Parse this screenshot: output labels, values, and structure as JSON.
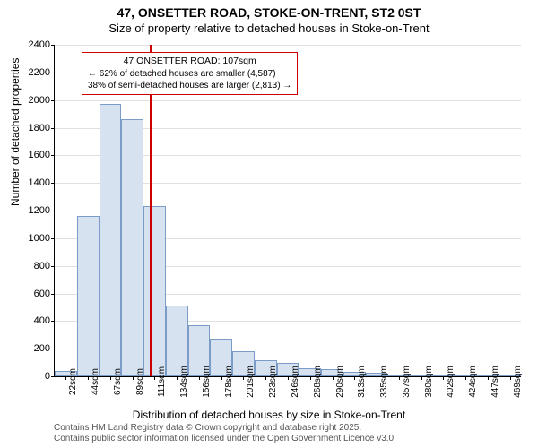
{
  "title": "47, ONSETTER ROAD, STOKE-ON-TRENT, ST2 0ST",
  "subtitle": "Size of property relative to detached houses in Stoke-on-Trent",
  "ylabel": "Number of detached properties",
  "xlabel": "Distribution of detached houses by size in Stoke-on-Trent",
  "footer_line1": "Contains HM Land Registry data © Crown copyright and database right 2025.",
  "footer_line2": "Contains public sector information licensed under the Open Government Licence v3.0.",
  "annotation": {
    "title": "47 ONSETTER ROAD: 107sqm",
    "line1": "← 62% of detached houses are smaller (4,587)",
    "line2": "38% of semi-detached houses are larger (2,813) →"
  },
  "chart": {
    "type": "histogram",
    "ylim": [
      0,
      2400
    ],
    "ytick_step": 200,
    "background_color": "#ffffff",
    "grid_color": "#e0e0e0",
    "bar_fill": "#d6e2f0",
    "bar_border": "#7a9cc6",
    "marker_color": "#cc0000",
    "marker_x": 107,
    "x_start": 11,
    "x_bin_width": 22.5,
    "categories": [
      "22sqm",
      "44sqm",
      "67sqm",
      "89sqm",
      "111sqm",
      "134sqm",
      "156sqm",
      "178sqm",
      "201sqm",
      "223sqm",
      "246sqm",
      "268sqm",
      "290sqm",
      "313sqm",
      "335sqm",
      "357sqm",
      "380sqm",
      "402sqm",
      "424sqm",
      "447sqm",
      "469sqm"
    ],
    "values": [
      40,
      1160,
      1970,
      1860,
      1230,
      510,
      370,
      270,
      180,
      120,
      100,
      60,
      50,
      30,
      25,
      15,
      10,
      8,
      5,
      4,
      3
    ]
  }
}
